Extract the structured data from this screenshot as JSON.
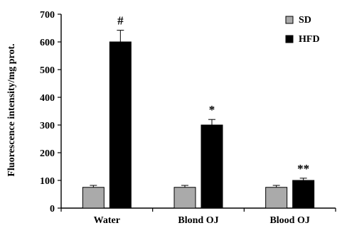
{
  "chart_data": {
    "type": "bar",
    "categories": [
      "Water",
      "Blond OJ",
      "Blood OJ"
    ],
    "series": [
      {
        "name": "SD",
        "color": "#aaaaaa",
        "values": [
          75,
          75,
          75
        ],
        "errors": [
          7,
          7,
          7
        ]
      },
      {
        "name": "HFD",
        "color": "#000000",
        "values": [
          600,
          300,
          100
        ],
        "errors": [
          42,
          20,
          8
        ]
      }
    ],
    "annotations": [
      "#",
      "*",
      "**"
    ],
    "ylabel": "Fluorescence intensity/mg prot.",
    "yticks": [
      0,
      100,
      200,
      300,
      400,
      500,
      600,
      700
    ],
    "ylim": [
      0,
      700
    ],
    "grid": false,
    "legend": "top-right"
  }
}
